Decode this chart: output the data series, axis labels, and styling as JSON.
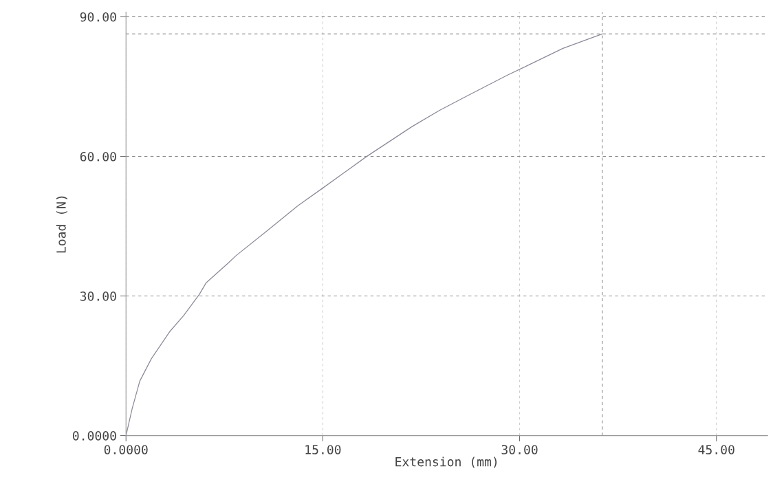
{
  "chart_data": {
    "type": "line",
    "xlabel": "Extension (mm)",
    "ylabel": "Load (N)",
    "series": [
      {
        "color": "#8a8a99",
        "x": [
          0,
          0.47,
          1.05,
          1.93,
          3.35,
          4.4,
          5.6,
          6.1,
          7.84,
          8.4,
          10.8,
          13.1,
          15.1,
          18.3,
          21.8,
          23.9,
          26.0,
          29.1,
          30.3,
          33.3,
          36.3
        ],
        "values": [
          0,
          5.8,
          11.7,
          16.5,
          22.4,
          25.8,
          30.4,
          32.8,
          37.2,
          38.7,
          44.1,
          49.4,
          53.4,
          59.9,
          66.4,
          69.9,
          73.0,
          77.5,
          79.1,
          83.2,
          86.3
        ]
      }
    ],
    "xlim": [
      0,
      48.9
    ],
    "ylim": [
      0,
      91
    ],
    "xticks": [
      {
        "value": 0,
        "label": "0.0000"
      },
      {
        "value": 15,
        "label": "15.00"
      },
      {
        "value": 30,
        "label": "30.00"
      },
      {
        "value": 45,
        "label": "45.00"
      }
    ],
    "yticks": [
      {
        "value": 0,
        "label": "0.0000"
      },
      {
        "value": 30,
        "label": "30.00"
      },
      {
        "value": 60,
        "label": "60.00"
      },
      {
        "value": 90,
        "label": "90.00"
      }
    ],
    "ref_lines": [
      {
        "axis": "y",
        "value": 86.3,
        "color": "#8a8a8a",
        "line_style": "dashed"
      },
      {
        "axis": "x",
        "value": 36.3,
        "color": "#8a8a8a",
        "line_style": "dashed"
      }
    ],
    "grid": true,
    "marker": "none",
    "line_style": "solid",
    "legend": false
  }
}
